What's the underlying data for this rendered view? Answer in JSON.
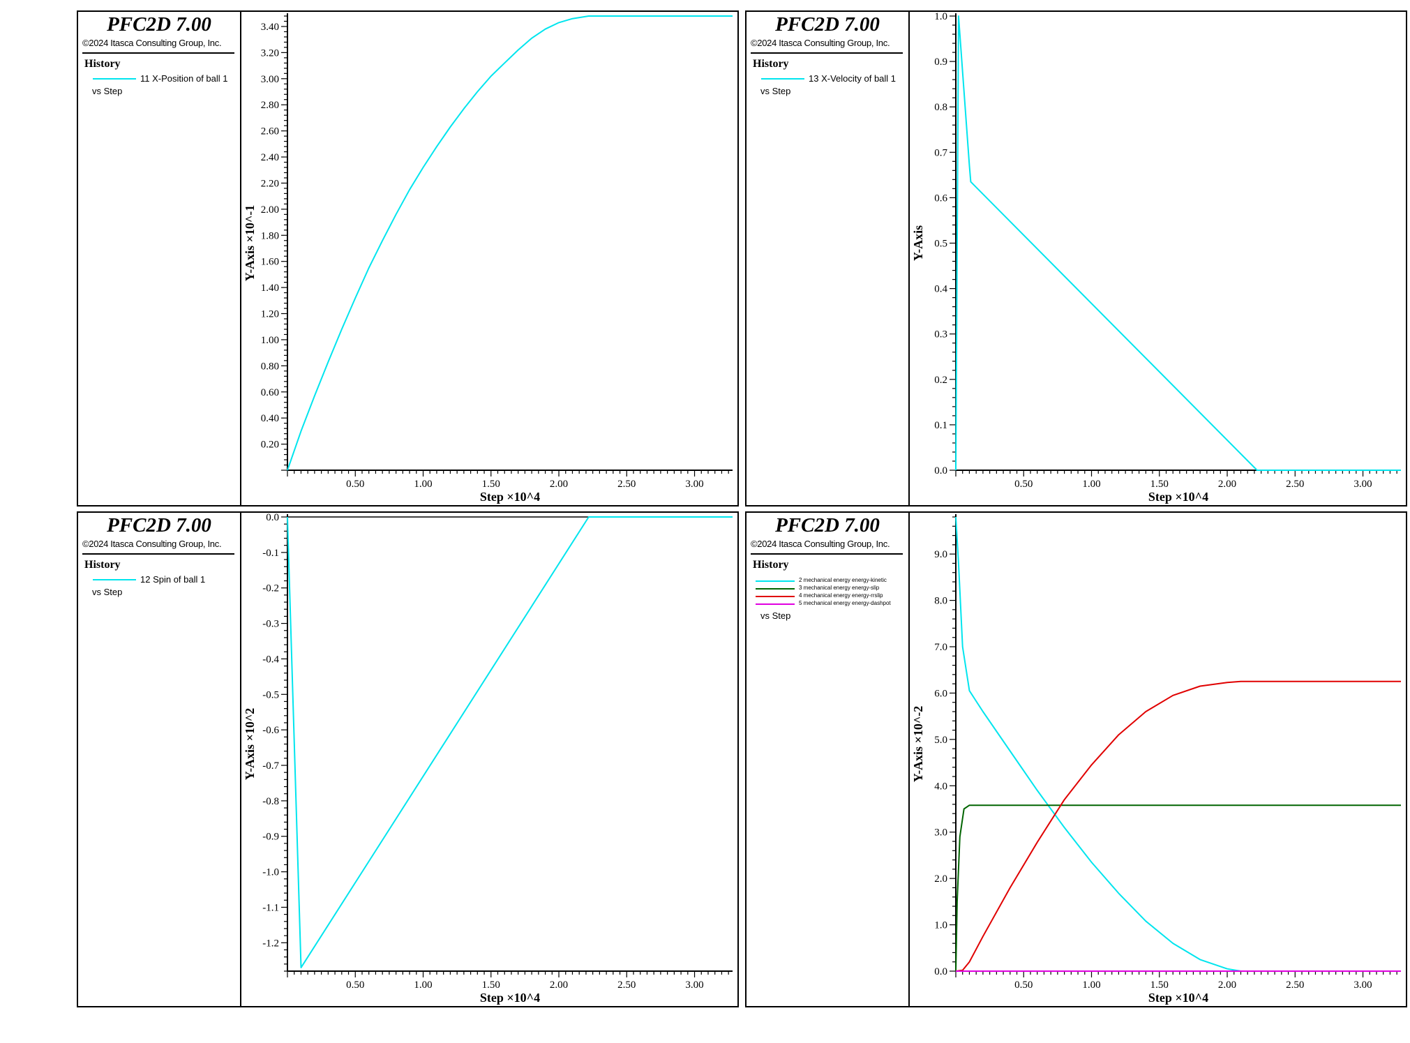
{
  "app": {
    "title": "PFC2D 7.00",
    "copyright": "©2024 Itasca Consulting Group, Inc.",
    "history_label": "History",
    "vs_label": "vs  Step"
  },
  "colors": {
    "cyan": "#00e5ee",
    "green": "#006400",
    "red": "#e00000",
    "magenta": "#e000e0"
  },
  "panels": [
    {
      "legend": [
        {
          "label": "11 X-Position of ball 1",
          "color": "#00e5ee"
        }
      ],
      "chart_data": {
        "type": "line",
        "xlabel": "Step ×10^4",
        "ylabel": "Y-Axis ×10^-1",
        "xlim": [
          0,
          3.28
        ],
        "ylim": [
          0,
          3.48
        ],
        "xticks": [
          0.5,
          1.0,
          1.5,
          2.0,
          2.5,
          3.0
        ],
        "xtick_labels": [
          "0.50",
          "1.00",
          "1.50",
          "2.00",
          "2.50",
          "3.00"
        ],
        "yticks": [
          0.2,
          0.4,
          0.6,
          0.8,
          1.0,
          1.2,
          1.4,
          1.6,
          1.8,
          2.0,
          2.2,
          2.4,
          2.6,
          2.8,
          3.0,
          3.2,
          3.4
        ],
        "ytick_labels": [
          "0.20",
          "0.40",
          "0.60",
          "0.80",
          "1.00",
          "1.20",
          "1.40",
          "1.60",
          "1.80",
          "2.00",
          "2.20",
          "2.40",
          "2.60",
          "2.80",
          "3.00",
          "3.20",
          "3.40"
        ],
        "grid": false,
        "series": [
          {
            "name": "11 X-Position of ball 1",
            "color": "#00e5ee",
            "x": [
              0,
              0.1,
              0.2,
              0.3,
              0.4,
              0.5,
              0.6,
              0.7,
              0.8,
              0.9,
              1.0,
              1.1,
              1.2,
              1.3,
              1.4,
              1.5,
              1.6,
              1.7,
              1.8,
              1.9,
              2.0,
              2.1,
              2.22,
              2.6,
              3.28
            ],
            "y": [
              0,
              0.3,
              0.57,
              0.83,
              1.08,
              1.32,
              1.55,
              1.76,
              1.96,
              2.15,
              2.32,
              2.48,
              2.63,
              2.77,
              2.9,
              3.02,
              3.12,
              3.22,
              3.31,
              3.38,
              3.43,
              3.46,
              3.48,
              3.48,
              3.48
            ]
          }
        ]
      }
    },
    {
      "legend": [
        {
          "label": "13 X-Velocity of ball 1",
          "color": "#00e5ee"
        }
      ],
      "chart_data": {
        "type": "line",
        "xlabel": "Step ×10^4",
        "ylabel": "Y-Axis",
        "xlim": [
          0,
          3.28
        ],
        "ylim": [
          0,
          1.0
        ],
        "xticks": [
          0.5,
          1.0,
          1.5,
          2.0,
          2.5,
          3.0
        ],
        "xtick_labels": [
          "0.50",
          "1.00",
          "1.50",
          "2.00",
          "2.50",
          "3.00"
        ],
        "yticks": [
          0,
          0.1,
          0.2,
          0.3,
          0.4,
          0.5,
          0.6,
          0.7,
          0.8,
          0.9,
          1.0
        ],
        "ytick_labels": [
          "0.0",
          "0.1",
          "0.2",
          "0.3",
          "0.4",
          "0.5",
          "0.6",
          "0.7",
          "0.8",
          "0.9",
          "1.0"
        ],
        "grid": false,
        "series": [
          {
            "name": "13 X-Velocity of ball 1",
            "color": "#00e5ee",
            "x": [
              0,
              0.02,
              0.1,
              0.11,
              2.22,
              3.28
            ],
            "y": [
              0,
              1.0,
              0.67,
              0.635,
              0,
              0
            ]
          }
        ]
      }
    },
    {
      "legend": [
        {
          "label": "12 Spin of ball 1",
          "color": "#00e5ee"
        }
      ],
      "chart_data": {
        "type": "line",
        "xlabel": "Step ×10^4",
        "ylabel": "Y-Axis ×10^2",
        "xlim": [
          0,
          3.28
        ],
        "ylim": [
          -1.28,
          0
        ],
        "xticks": [
          0.5,
          1.0,
          1.5,
          2.0,
          2.5,
          3.0
        ],
        "xtick_labels": [
          "0.50",
          "1.00",
          "1.50",
          "2.00",
          "2.50",
          "3.00"
        ],
        "yticks": [
          0,
          -0.1,
          -0.2,
          -0.3,
          -0.4,
          -0.5,
          -0.6,
          -0.7,
          -0.8,
          -0.9,
          -1.0,
          -1.1,
          -1.2
        ],
        "ytick_labels": [
          "0.0",
          "-0.1",
          "-0.2",
          "-0.3",
          "-0.4",
          "-0.5",
          "-0.6",
          "-0.7",
          "-0.8",
          "-0.9",
          "-1.0",
          "-1.1",
          "-1.2"
        ],
        "grid": false,
        "zero_line": true,
        "series": [
          {
            "name": "12 Spin of ball 1",
            "color": "#00e5ee",
            "x": [
              0,
              0.1,
              2.22,
              3.28
            ],
            "y": [
              0,
              -1.27,
              0,
              0
            ]
          }
        ]
      }
    },
    {
      "legend": [
        {
          "label": "2 mechanical energy energy-kinetic",
          "color": "#00e5ee"
        },
        {
          "label": "3 mechanical energy energy-slip",
          "color": "#006400"
        },
        {
          "label": "4 mechanical energy energy-rrslip",
          "color": "#e00000"
        },
        {
          "label": "5 mechanical energy energy-dashpot",
          "color": "#e000e0"
        }
      ],
      "chart_data": {
        "type": "line",
        "xlabel": "Step ×10^4",
        "ylabel": "Y-Axis ×10^-2",
        "xlim": [
          0,
          3.28
        ],
        "ylim": [
          0,
          9.8
        ],
        "xticks": [
          0.5,
          1.0,
          1.5,
          2.0,
          2.5,
          3.0
        ],
        "xtick_labels": [
          "0.50",
          "1.00",
          "1.50",
          "2.00",
          "2.50",
          "3.00"
        ],
        "yticks": [
          0,
          1,
          2,
          3,
          4,
          5,
          6,
          7,
          8,
          9
        ],
        "ytick_labels": [
          "0.0",
          "1.0",
          "2.0",
          "3.0",
          "4.0",
          "5.0",
          "6.0",
          "7.0",
          "8.0",
          "9.0"
        ],
        "grid": false,
        "series": [
          {
            "name": "2 mechanical energy energy-kinetic",
            "color": "#00e5ee",
            "x": [
              0,
              0.02,
              0.05,
              0.1,
              0.2,
              0.4,
              0.6,
              0.8,
              1.0,
              1.2,
              1.4,
              1.6,
              1.8,
              2.0,
              2.1,
              2.2,
              3.28
            ],
            "y": [
              9.8,
              8.8,
              7.0,
              6.05,
              5.6,
              4.75,
              3.9,
              3.1,
              2.35,
              1.68,
              1.08,
              0.6,
              0.25,
              0.05,
              0,
              0,
              0
            ]
          },
          {
            "name": "3 mechanical energy energy-slip",
            "color": "#006400",
            "x": [
              0,
              0.01,
              0.03,
              0.06,
              0.1,
              3.28
            ],
            "y": [
              0,
              1.5,
              2.9,
              3.5,
              3.58,
              3.58
            ]
          },
          {
            "name": "4 mechanical energy energy-rrslip",
            "color": "#e00000",
            "x": [
              0,
              0.05,
              0.1,
              0.2,
              0.4,
              0.6,
              0.8,
              1.0,
              1.2,
              1.4,
              1.6,
              1.8,
              2.0,
              2.1,
              2.2,
              3.28
            ],
            "y": [
              0,
              0.02,
              0.2,
              0.75,
              1.8,
              2.78,
              3.7,
              4.45,
              5.1,
              5.6,
              5.95,
              6.15,
              6.23,
              6.25,
              6.25,
              6.25
            ]
          },
          {
            "name": "5 mechanical energy energy-dashpot",
            "color": "#e000e0",
            "x": [
              0,
              3.28
            ],
            "y": [
              0,
              0
            ]
          }
        ]
      }
    }
  ]
}
